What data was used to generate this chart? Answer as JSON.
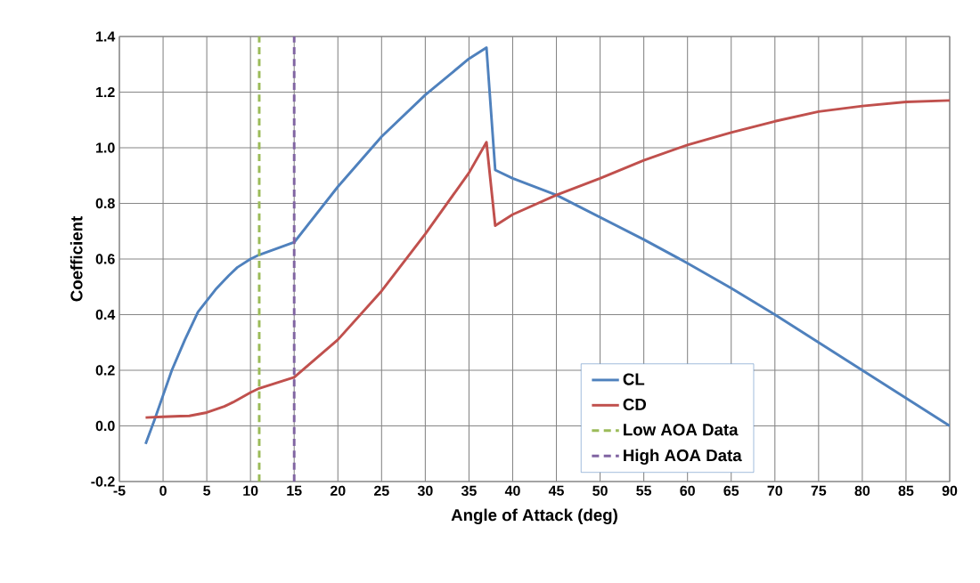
{
  "chart_data": {
    "type": "line",
    "xlabel": "Angle of Attack (deg)",
    "ylabel": "Coefficient",
    "xlim": [
      -5,
      90
    ],
    "ylim": [
      -0.2,
      1.4
    ],
    "xticks": [
      -5,
      0,
      5,
      10,
      15,
      20,
      25,
      30,
      35,
      40,
      45,
      50,
      55,
      60,
      65,
      70,
      75,
      80,
      85,
      90
    ],
    "yticks": [
      {
        "value": -0.2,
        "label": "-0.2"
      },
      {
        "value": 0,
        "label": "0.0"
      },
      {
        "value": 0.2,
        "label": "0.2"
      },
      {
        "value": 0.4,
        "label": "0.4"
      },
      {
        "value": 0.6,
        "label": "0.6"
      },
      {
        "value": 0.8,
        "label": "0.8"
      },
      {
        "value": 1.0,
        "label": "1.0"
      },
      {
        "value": 1.2,
        "label": "1.2"
      },
      {
        "value": 1.4,
        "label": "1.4"
      }
    ],
    "grid": true,
    "legend": "bottom",
    "marker": "none",
    "series": [
      {
        "name": "CL",
        "color": "#4f81bd",
        "line_style": "solid",
        "x": [
          -2,
          -1,
          0,
          1,
          2.5,
          4,
          5,
          6,
          7.5,
          8.5,
          10,
          11,
          15,
          20,
          25,
          30,
          35,
          37,
          38,
          40,
          45,
          50,
          55,
          60,
          65,
          70,
          75,
          80,
          85,
          90
        ],
        "values": [
          -0.065,
          0.02,
          0.11,
          0.2,
          0.31,
          0.41,
          0.45,
          0.49,
          0.54,
          0.57,
          0.6,
          0.615,
          0.66,
          0.86,
          1.04,
          1.19,
          1.32,
          1.36,
          0.92,
          0.89,
          0.83,
          0.75,
          0.67,
          0.585,
          0.495,
          0.4,
          0.3,
          0.2,
          0.1,
          0.0
        ]
      },
      {
        "name": "CD",
        "color": "#c0504d",
        "line_style": "solid",
        "x": [
          -2,
          0,
          2,
          3,
          5,
          7,
          8,
          10,
          11,
          15,
          20,
          25,
          30,
          35,
          37,
          38,
          40,
          45,
          50,
          55,
          60,
          65,
          70,
          75,
          80,
          85,
          90
        ],
        "values": [
          0.03,
          0.033,
          0.035,
          0.036,
          0.048,
          0.07,
          0.085,
          0.12,
          0.135,
          0.175,
          0.31,
          0.485,
          0.69,
          0.91,
          1.02,
          0.72,
          0.76,
          0.83,
          0.89,
          0.955,
          1.01,
          1.055,
          1.095,
          1.13,
          1.15,
          1.165,
          1.17
        ]
      },
      {
        "name": "Low AOA Data",
        "color": "#9bbb59",
        "line_style": "dashed",
        "x": [
          11,
          11
        ],
        "values": [
          -0.2,
          1.4
        ]
      },
      {
        "name": "High AOA Data",
        "color": "#8064a2",
        "line_style": "dashed",
        "x": [
          15,
          15
        ],
        "values": [
          -0.2,
          1.4
        ]
      }
    ]
  }
}
